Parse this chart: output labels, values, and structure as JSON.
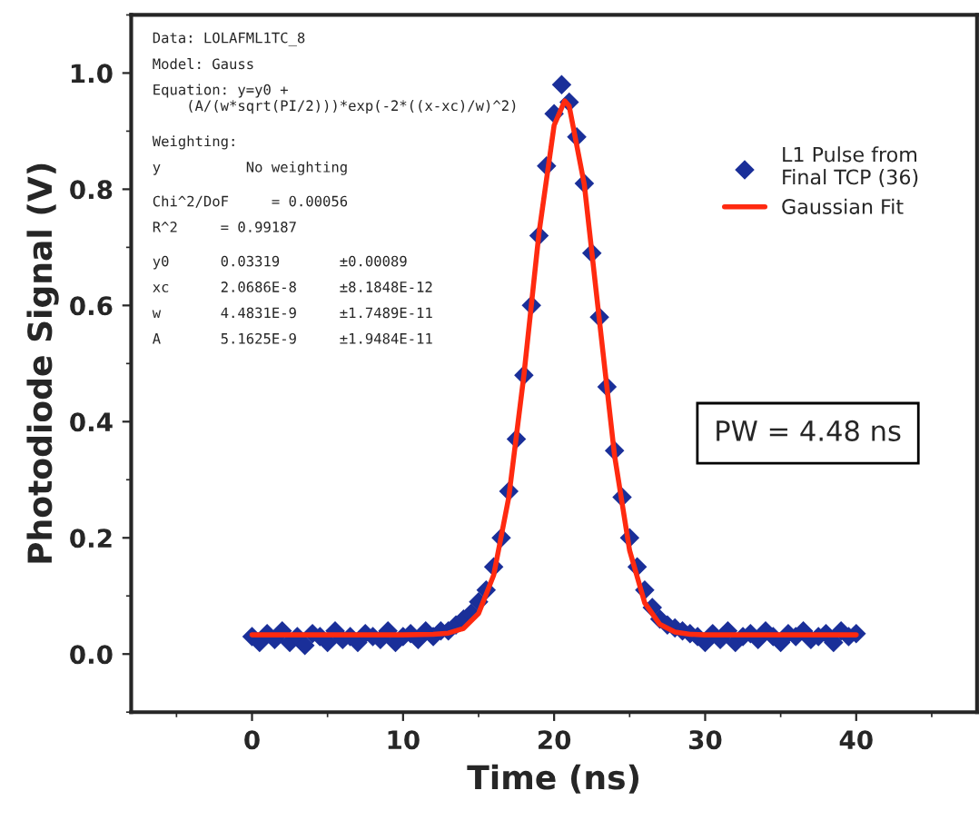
{
  "chart_data": {
    "type": "scatter",
    "xlabel": "Time (ns)",
    "ylabel": "Photodiode Signal (V)",
    "xlim": [
      -8,
      48
    ],
    "ylim": [
      -0.1,
      1.1
    ],
    "xticks": [
      0,
      10,
      20,
      30,
      40
    ],
    "yticks": [
      {
        "value": 0,
        "label": "0.0"
      },
      {
        "value": 0.2,
        "label": "0.2"
      },
      {
        "value": 0.4,
        "label": "0.4"
      },
      {
        "value": 0.6,
        "label": "0.6"
      },
      {
        "value": 0.8,
        "label": "0.8"
      },
      {
        "value": 1.0,
        "label": "1.0"
      }
    ],
    "grid": false,
    "legend": "right",
    "series": [
      {
        "name": "L1 Pulse from\nFinal TCP (36)",
        "marker": "diamond",
        "color": "#1a2f99",
        "x": [
          0,
          0.5,
          1,
          1.5,
          2,
          2.5,
          3,
          3.5,
          4,
          4.5,
          5,
          5.5,
          6,
          6.5,
          7,
          7.5,
          8,
          8.5,
          9,
          9.5,
          10,
          10.5,
          11,
          11.5,
          12,
          12.5,
          13,
          13.5,
          14,
          14.5,
          15,
          15.5,
          16,
          16.5,
          17,
          17.5,
          18,
          18.5,
          19,
          19.5,
          20,
          20.5,
          21,
          21.5,
          22,
          22.5,
          23,
          23.5,
          24,
          24.5,
          25,
          25.5,
          26,
          26.5,
          27,
          27.5,
          28,
          28.5,
          29,
          29.5,
          30,
          30.5,
          31,
          31.5,
          32,
          32.5,
          33,
          33.5,
          34,
          34.5,
          35,
          35.5,
          36,
          36.5,
          37,
          37.5,
          38,
          38.5,
          39,
          39.5,
          40
        ],
        "values": [
          0.03,
          0.02,
          0.035,
          0.025,
          0.04,
          0.02,
          0.03,
          0.015,
          0.035,
          0.03,
          0.02,
          0.04,
          0.025,
          0.03,
          0.02,
          0.035,
          0.03,
          0.025,
          0.04,
          0.02,
          0.03,
          0.035,
          0.025,
          0.04,
          0.03,
          0.04,
          0.04,
          0.05,
          0.06,
          0.07,
          0.09,
          0.11,
          0.15,
          0.2,
          0.28,
          0.37,
          0.48,
          0.6,
          0.72,
          0.84,
          0.93,
          0.98,
          0.95,
          0.89,
          0.81,
          0.69,
          0.58,
          0.46,
          0.35,
          0.27,
          0.2,
          0.15,
          0.11,
          0.08,
          0.06,
          0.05,
          0.045,
          0.04,
          0.035,
          0.03,
          0.02,
          0.035,
          0.025,
          0.04,
          0.02,
          0.03,
          0.035,
          0.025,
          0.04,
          0.03,
          0.02,
          0.035,
          0.03,
          0.04,
          0.025,
          0.03,
          0.035,
          0.02,
          0.04,
          0.03,
          0.035
        ]
      },
      {
        "name": "Gaussian Fit",
        "type": "line",
        "marker": "none",
        "line_style": "solid",
        "color": "#ff2a10",
        "x": [
          0,
          5,
          10,
          12,
          13,
          14,
          15,
          16,
          17,
          18,
          19,
          20,
          20.7,
          21,
          22,
          23,
          24,
          25,
          26,
          27,
          28,
          29,
          30,
          35,
          40
        ],
        "values": [
          0.033,
          0.033,
          0.033,
          0.034,
          0.036,
          0.044,
          0.07,
          0.136,
          0.27,
          0.48,
          0.725,
          0.91,
          0.952,
          0.943,
          0.808,
          0.574,
          0.342,
          0.178,
          0.088,
          0.051,
          0.038,
          0.034,
          0.033,
          0.033,
          0.033
        ]
      }
    ],
    "annotations": [
      "Data: LOLAFML1TC_8",
      "Model: Gauss",
      "Equation: y=y0 + (A/(w*sqrt(PI/2)))*exp(-2*((x-xc)/w)^2)",
      "Weighting:",
      "y          No weighting",
      "Chi^2/DoF     = 0.00056",
      "R^2     = 0.99187",
      "y0      0.03319       ±0.00089",
      "xc      2.0686E-8     ±8.1848E-12",
      "w       4.4831E-9     ±1.7489E-11",
      "A       5.1625E-9     ±1.9484E-11",
      "PW = 4.48 ns"
    ]
  }
}
